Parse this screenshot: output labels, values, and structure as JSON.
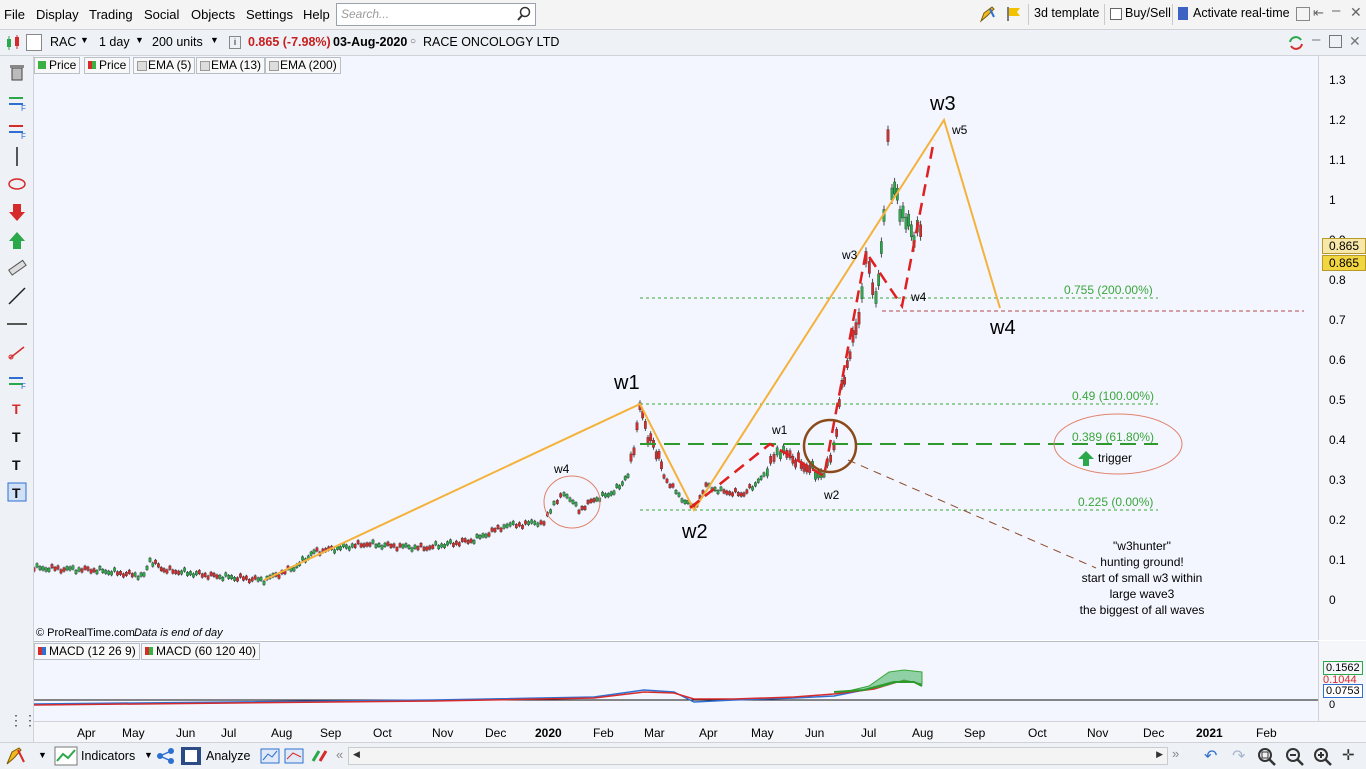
{
  "menu": {
    "items": [
      "File",
      "Display",
      "Trading",
      "Social",
      "Objects",
      "Settings",
      "Help"
    ],
    "search_placeholder": "Search...",
    "template_label": "3d template",
    "buysell_label": "Buy/Sell",
    "realtime_label": "Activate real-time"
  },
  "toolbar": {
    "symbol": "RAC",
    "period": "1 day",
    "units": "200 units",
    "price": "0.865 (-7.98%)",
    "date": "03-Aug-2020",
    "name": "RACE ONCOLOGY LTD"
  },
  "indicator_tags": [
    {
      "label": "Price",
      "color": "#3cb043"
    },
    {
      "label": "Price",
      "color": "#3cb043"
    },
    {
      "label": "EMA (5)",
      "color": "#bbbbbb"
    },
    {
      "label": "EMA (13)",
      "color": "#bbbbbb"
    },
    {
      "label": "EMA (200)",
      "color": "#bbbbbb"
    }
  ],
  "copyright": "© ProRealTime.com",
  "copyright_note": "Data is end of day",
  "yaxis_labels": [
    "1.3",
    "1.2",
    "1.1",
    "1",
    "0.9",
    "0.8",
    "0.7",
    "0.6",
    "0.5",
    "0.4",
    "0.3",
    "0.2",
    "0.1",
    "0"
  ],
  "price_badges": [
    "0.865",
    "0.865"
  ],
  "xaxis_labels": [
    "Apr",
    "May",
    "Jun",
    "Jul",
    "Aug",
    "Sep",
    "Oct",
    "Nov",
    "Dec",
    "2020",
    "Feb",
    "Mar",
    "Apr",
    "May",
    "Jun",
    "Jul",
    "Aug",
    "Sep",
    "Oct",
    "Nov",
    "Dec",
    "2021",
    "Feb"
  ],
  "fib_levels": [
    {
      "label": "0.755 (200.00%)",
      "value": 0.755
    },
    {
      "label": "0.49 (100.00%)",
      "value": 0.49
    },
    {
      "label": "0.389 (61.80%)",
      "value": 0.389
    },
    {
      "label": "0.225 (0.00%)",
      "value": 0.225
    }
  ],
  "wave_labels": {
    "w1": "w1",
    "w2": "w2",
    "w3": "w3",
    "w4": "w4",
    "w5": "w5",
    "small_w4": "w4",
    "small_w1": "w1",
    "small_w2": "w2",
    "small_w3": "w3",
    "small_w4b": "w4"
  },
  "annotation": {
    "trigger": "trigger",
    "lines": [
      "\"w3hunter\"",
      "hunting ground!",
      "start of small w3 within",
      "large wave3",
      "the biggest of all waves"
    ]
  },
  "macd": {
    "tag1": "MACD (12 26 9)",
    "tag2": "MACD (60 120 40)",
    "values": [
      "0.1562",
      "0.1044",
      "0.0753",
      "0"
    ]
  },
  "bottom": {
    "indicators_label": "Indicators",
    "analyze_label": "Analyze"
  }
}
